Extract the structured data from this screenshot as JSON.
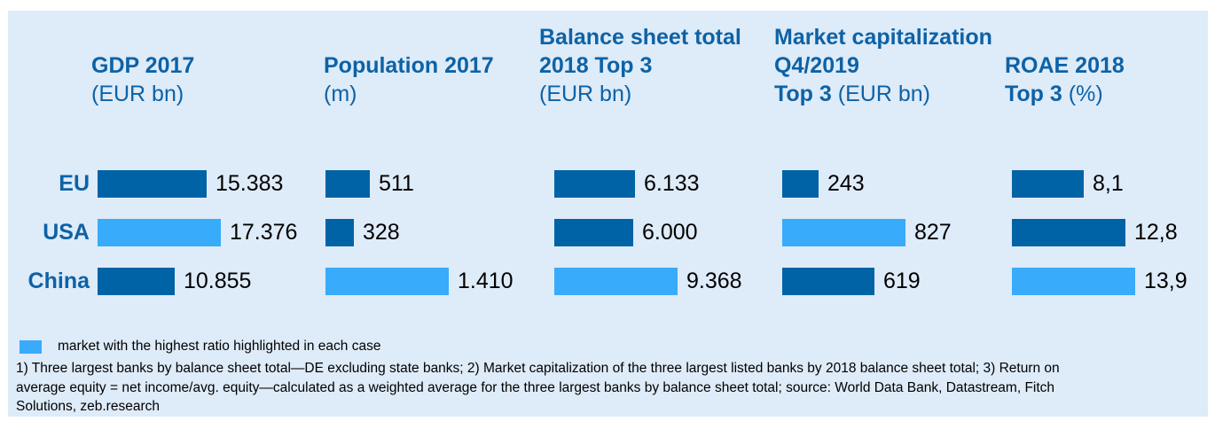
{
  "colors": {
    "panel_bg": "#deebf8",
    "bar": "#0063a6",
    "highlight": "#38abfa",
    "heading_text": "#0d62a6",
    "value_text": "#000000"
  },
  "chart_data": {
    "type": "bar",
    "orientation": "horizontal",
    "grid": false,
    "categories": [
      "EU",
      "USA",
      "China"
    ],
    "columns": [
      {
        "id": "gdp",
        "title": "GDP 2017",
        "unit": "(EUR bn)",
        "header_lines": [
          {
            "b": "",
            "r": ""
          },
          {
            "b": "GDP 2017",
            "r": ""
          },
          {
            "b": "",
            "r": "(EUR bn)"
          }
        ],
        "values": [
          15383,
          17376,
          10855
        ],
        "value_labels": [
          "15.383",
          "17.376",
          "10.855"
        ],
        "highlight_index": 1
      },
      {
        "id": "population",
        "title": "Population 2017",
        "unit": "(m)",
        "header_lines": [
          {
            "b": "",
            "r": ""
          },
          {
            "b": "Population 2017",
            "r": ""
          },
          {
            "b": "",
            "r": "(m)"
          }
        ],
        "values": [
          511,
          328,
          1410
        ],
        "value_labels": [
          "511",
          "328",
          "1.410"
        ],
        "highlight_index": 2
      },
      {
        "id": "balance-sheet-total",
        "title": "Balance sheet total 2018 Top 3",
        "unit": "(EUR bn)",
        "header_lines": [
          {
            "b": "Balance sheet total",
            "r": ""
          },
          {
            "b": "2018 Top 3",
            "r": ""
          },
          {
            "b": "",
            "r": "(EUR bn)"
          }
        ],
        "values": [
          6133,
          6000,
          9368
        ],
        "value_labels": [
          "6.133",
          "6.000",
          "9.368"
        ],
        "highlight_index": 2
      },
      {
        "id": "market-capitalization",
        "title": "Market capitalization Q4/2019 Top 3",
        "unit": "(EUR bn)",
        "header_lines": [
          {
            "b": "Market capitalization",
            "r": ""
          },
          {
            "b": "Q4/2019",
            "r": ""
          },
          {
            "b": "Top 3 ",
            "r": "(EUR bn)"
          }
        ],
        "values": [
          243,
          827,
          619
        ],
        "value_labels": [
          "243",
          "827",
          "619"
        ],
        "highlight_index": 1
      },
      {
        "id": "roae",
        "title": "ROAE 2018 Top 3",
        "unit": "(%)",
        "header_lines": [
          {
            "b": "",
            "r": ""
          },
          {
            "b": "ROAE 2018",
            "r": ""
          },
          {
            "b": "Top 3 ",
            "r": "(%)"
          }
        ],
        "values": [
          8.1,
          12.8,
          13.9
        ],
        "value_labels": [
          "8,1",
          "12,8",
          "13,9"
        ],
        "highlight_index": 2
      }
    ],
    "legend": {
      "label": "market with the highest ratio highlighted in each case"
    },
    "footnotes": [
      "1) Three largest banks by balance sheet total—DE excluding state banks; 2) Market capitalization of the three largest listed banks by 2018 balance sheet total; 3) Return on",
      "average equity = net income/avg. equity—calculated as a weighted average for the three largest banks by balance sheet total; source: World Data Bank, Datastream, Fitch",
      "Solutions, zeb.research"
    ]
  }
}
